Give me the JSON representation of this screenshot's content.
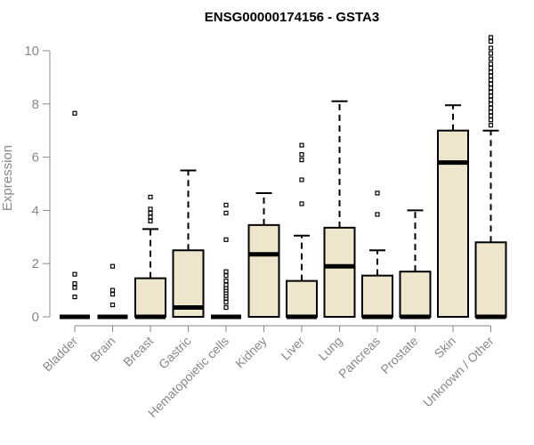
{
  "chart_data": {
    "type": "box",
    "title": "ENSG00000174156 - GSTA3",
    "ylabel": "Expression",
    "xlabel": "",
    "ylim": [
      0,
      10.5
    ],
    "yticks": [
      0,
      2,
      4,
      6,
      8,
      10
    ],
    "colors": {
      "box_fill": "#ede6cc",
      "box_stroke": "#000000",
      "axis": "#888888",
      "text": "#888888"
    },
    "grid": false,
    "legend": "none",
    "categories": [
      "Bladder",
      "Brain",
      "Breast",
      "Gastric",
      "Hematopoietic cells",
      "Kidney",
      "Liver",
      "Lung",
      "Pancreas",
      "Prostate",
      "Skin",
      "Unknown / Other"
    ],
    "boxes": [
      {
        "category": "Bladder",
        "q1": 0,
        "median": 0,
        "q3": 0,
        "whisker_low": 0,
        "whisker_high": 0,
        "outliers": [
          0.75,
          1.1,
          1.25,
          1.6,
          7.65
        ]
      },
      {
        "category": "Brain",
        "q1": 0,
        "median": 0,
        "q3": 0,
        "whisker_low": 0,
        "whisker_high": 0,
        "outliers": [
          0.45,
          0.85,
          1.0,
          1.9
        ]
      },
      {
        "category": "Breast",
        "q1": 0,
        "median": 0,
        "q3": 1.45,
        "whisker_low": 0,
        "whisker_high": 3.3,
        "outliers": [
          3.6,
          3.75,
          3.9,
          4.05,
          4.5
        ]
      },
      {
        "category": "Gastric",
        "q1": 0,
        "median": 0.35,
        "q3": 2.5,
        "whisker_low": 0,
        "whisker_high": 5.5,
        "outliers": []
      },
      {
        "category": "Hematopoietic cells",
        "q1": 0,
        "median": 0,
        "q3": 0,
        "whisker_low": 0,
        "whisker_high": 0,
        "outliers": [
          0.35,
          0.55,
          0.7,
          0.8,
          0.9,
          1.0,
          1.1,
          1.2,
          1.35,
          1.55,
          1.7,
          2.9,
          3.9,
          4.2
        ]
      },
      {
        "category": "Kidney",
        "q1": 0,
        "median": 2.35,
        "q3": 3.45,
        "whisker_low": 0,
        "whisker_high": 4.65,
        "outliers": []
      },
      {
        "category": "Liver",
        "q1": 0,
        "median": 0,
        "q3": 1.35,
        "whisker_low": 0,
        "whisker_high": 3.05,
        "outliers": [
          4.25,
          5.15,
          5.9,
          6.1,
          6.45
        ]
      },
      {
        "category": "Lung",
        "q1": 0,
        "median": 1.9,
        "q3": 3.35,
        "whisker_low": 0,
        "whisker_high": 8.1,
        "outliers": []
      },
      {
        "category": "Pancreas",
        "q1": 0,
        "median": 0,
        "q3": 1.55,
        "whisker_low": 0,
        "whisker_high": 2.5,
        "outliers": [
          3.85,
          4.65
        ]
      },
      {
        "category": "Prostate",
        "q1": 0,
        "median": 0,
        "q3": 1.7,
        "whisker_low": 0,
        "whisker_high": 4.0,
        "outliers": []
      },
      {
        "category": "Skin",
        "q1": 0,
        "median": 5.8,
        "q3": 7.0,
        "whisker_low": 0,
        "whisker_high": 7.95,
        "outliers": []
      },
      {
        "category": "Unknown / Other",
        "q1": 0,
        "median": 0,
        "q3": 2.8,
        "whisker_low": 0,
        "whisker_high": 7.0,
        "outliers": [
          7.2,
          7.4,
          7.55,
          7.7,
          7.85,
          8.0,
          8.15,
          8.3,
          8.45,
          8.6,
          8.75,
          8.9,
          9.05,
          9.2,
          9.35,
          9.5,
          9.7,
          9.9,
          10.1,
          10.35,
          10.5
        ]
      }
    ]
  }
}
